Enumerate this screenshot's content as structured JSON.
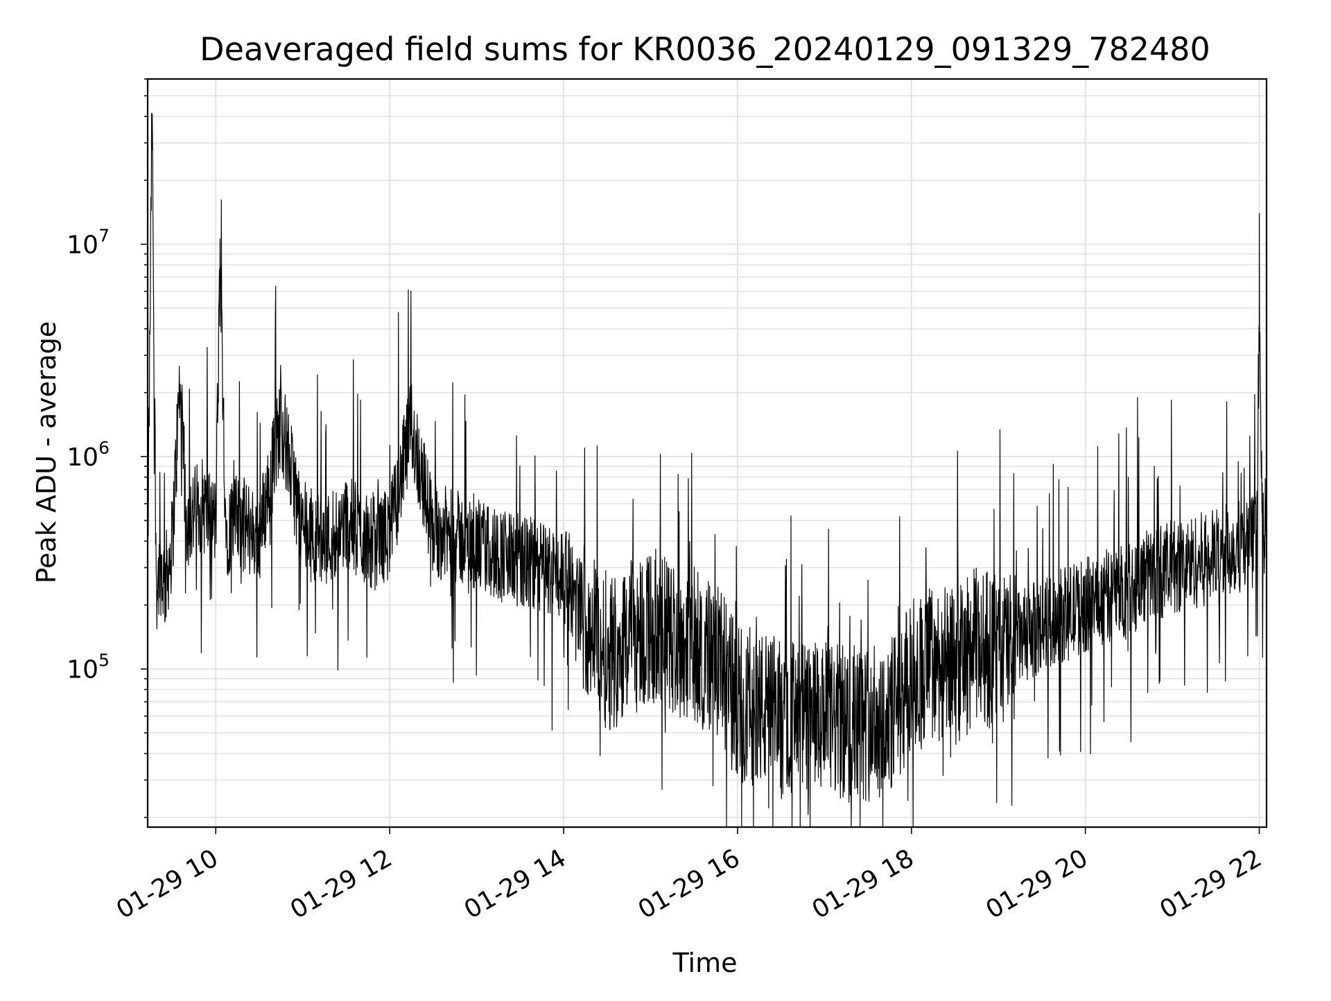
{
  "chart_data": {
    "type": "line",
    "title": "Deaveraged field sums for KR0036_20240129_091329_782480",
    "xlabel": "Time",
    "ylabel": "Peak ADU - average",
    "yscale": "log",
    "ylim": [
      18000,
      60000000
    ],
    "xlim": [
      "2024-01-29 09:13",
      "2024-01-29 22:05"
    ],
    "grid": true,
    "x_tick_values": [
      "2024-01-29 10:00",
      "2024-01-29 12:00",
      "2024-01-29 14:00",
      "2024-01-29 16:00",
      "2024-01-29 18:00",
      "2024-01-29 20:00",
      "2024-01-29 22:00"
    ],
    "x_tick_labels": [
      "01-29 10",
      "01-29 12",
      "01-29 14",
      "01-29 16",
      "01-29 18",
      "01-29 20",
      "01-29 22"
    ],
    "y_ticks": [
      {
        "value": 100000,
        "base": "10",
        "exp": "5"
      },
      {
        "value": 1000000,
        "base": "10",
        "exp": "6"
      },
      {
        "value": 10000000,
        "base": "10",
        "exp": "7"
      }
    ],
    "line_color": "#000000",
    "series": [
      {
        "x": [
          "2024-01-29 09:13",
          "2024-01-29 09:16",
          "2024-01-29 09:19",
          "2024-01-29 09:22",
          "2024-01-29 09:25",
          "2024-01-29 09:30",
          "2024-01-29 09:35",
          "2024-01-29 09:40",
          "2024-01-29 09:50",
          "2024-01-29 10:00",
          "2024-01-29 10:03",
          "2024-01-29 10:07",
          "2024-01-29 10:15",
          "2024-01-29 10:30",
          "2024-01-29 10:45",
          "2024-01-29 11:00",
          "2024-01-29 11:15",
          "2024-01-29 11:30",
          "2024-01-29 11:45",
          "2024-01-29 12:00",
          "2024-01-29 12:15",
          "2024-01-29 12:30",
          "2024-01-29 12:45",
          "2024-01-29 13:00",
          "2024-01-29 13:15",
          "2024-01-29 13:30",
          "2024-01-29 13:45",
          "2024-01-29 14:00",
          "2024-01-29 14:15",
          "2024-01-29 14:30",
          "2024-01-29 14:45",
          "2024-01-29 15:00",
          "2024-01-29 15:15",
          "2024-01-29 15:30",
          "2024-01-29 15:45",
          "2024-01-29 16:00",
          "2024-01-29 16:15",
          "2024-01-29 16:30",
          "2024-01-29 16:45",
          "2024-01-29 17:00",
          "2024-01-29 17:15",
          "2024-01-29 17:30",
          "2024-01-29 17:45",
          "2024-01-29 18:00",
          "2024-01-29 18:15",
          "2024-01-29 18:30",
          "2024-01-29 18:45",
          "2024-01-29 19:00",
          "2024-01-29 19:15",
          "2024-01-29 19:30",
          "2024-01-29 19:45",
          "2024-01-29 20:00",
          "2024-01-29 20:15",
          "2024-01-29 20:30",
          "2024-01-29 20:45",
          "2024-01-29 21:00",
          "2024-01-29 21:15",
          "2024-01-29 21:30",
          "2024-01-29 21:45",
          "2024-01-29 21:58",
          "2024-01-29 22:00",
          "2024-01-29 22:02",
          "2024-01-29 22:05"
        ],
        "values": [
          280000,
          40000000,
          250000,
          300000,
          250000,
          400000,
          2100000,
          500000,
          600000,
          480000,
          8200000,
          450000,
          500000,
          420000,
          1500000,
          450000,
          400000,
          500000,
          400000,
          430000,
          1400000,
          450000,
          420000,
          380000,
          350000,
          320000,
          300000,
          280000,
          180000,
          120000,
          140000,
          160000,
          140000,
          130000,
          110000,
          70000,
          65000,
          60000,
          58000,
          57000,
          55000,
          56000,
          58000,
          90000,
          110000,
          100000,
          130000,
          120000,
          140000,
          160000,
          180000,
          200000,
          220000,
          240000,
          280000,
          300000,
          320000,
          340000,
          380000,
          400000,
          4000000,
          450000,
          480000
        ]
      }
    ]
  }
}
